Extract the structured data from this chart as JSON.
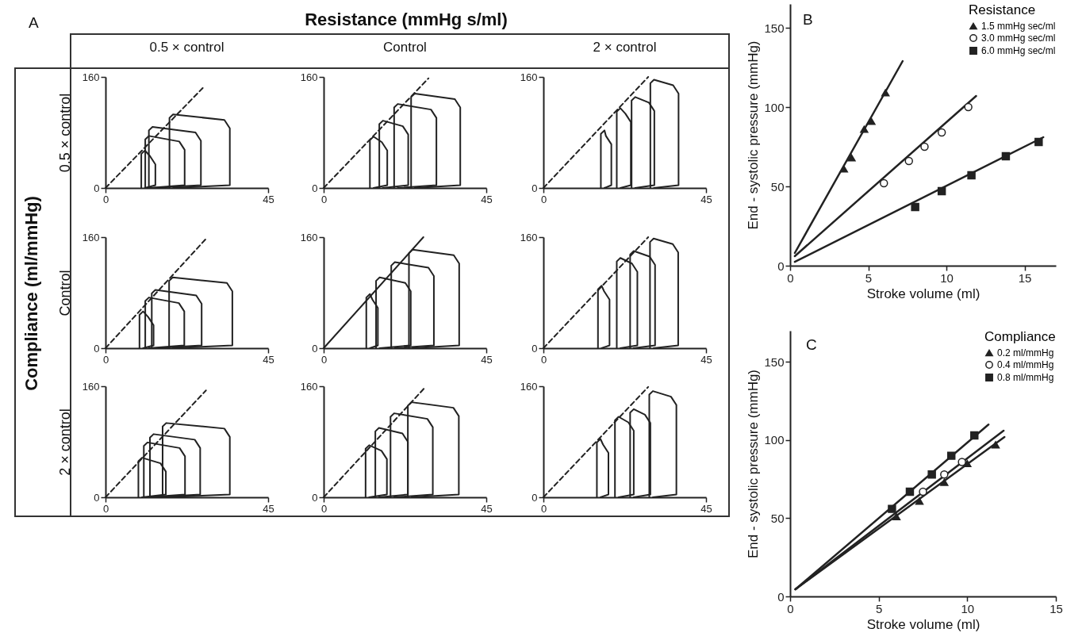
{
  "chart_data": [
    {
      "type": "line",
      "title": "0.5 × control",
      "ylabel": "0.5 × control",
      "annotations": [
        "A",
        "Resistance (mmHg s/ml)",
        "Compliance (ml/mmHg)"
      ],
      "xlim": [
        0,
        45
      ],
      "xticks": [
        0,
        45
      ],
      "ylim": [
        0,
        160
      ],
      "yticks": [
        0,
        160
      ],
      "series": [
        {
          "color": "#222222",
          "x": [
            9.9,
            9.9,
            10.9,
            12.3,
            13.8,
            13.8,
            10.9
          ],
          "values": [
            0,
            49,
            54,
            46,
            34,
            4,
            0
          ]
        },
        {
          "color": "#222222",
          "x": [
            11,
            11,
            12,
            20.4,
            21.9,
            21.9,
            12
          ],
          "values": [
            0,
            70,
            75,
            67,
            55,
            4,
            0
          ]
        },
        {
          "color": "#222222",
          "x": [
            12,
            12,
            13,
            24.9,
            26.4,
            26.4,
            13
          ],
          "values": [
            0,
            83,
            88,
            80,
            68,
            4,
            0
          ]
        },
        {
          "color": "#222222",
          "x": [
            17.7,
            17.7,
            18.7,
            32.9,
            34.4,
            34.4,
            18.7
          ],
          "values": [
            0,
            101,
            106,
            98,
            86,
            4,
            0
          ]
        },
        {
          "color": "#222222",
          "line_style": "dashed",
          "x": [
            0,
            26.9
          ],
          "values": [
            0,
            144
          ]
        }
      ]
    },
    {
      "type": "line",
      "title": "Control",
      "xlim": [
        0,
        45
      ],
      "xticks": [
        0,
        45
      ],
      "ylim": [
        0,
        160
      ],
      "yticks": [
        0,
        160
      ],
      "series": [
        {
          "color": "#222222",
          "x": [
            12.8,
            12.8,
            13.8,
            16.1,
            17.6,
            17.6,
            13.8
          ],
          "values": [
            0,
            69,
            74,
            66,
            54,
            4,
            0
          ]
        },
        {
          "color": "#222222",
          "x": [
            15.4,
            15.4,
            16.4,
            21.9,
            23.4,
            23.4,
            16.4
          ],
          "values": [
            0,
            92,
            97,
            89,
            77,
            4,
            0
          ]
        },
        {
          "color": "#222222",
          "x": [
            19.5,
            19.5,
            20.5,
            29.7,
            31.2,
            31.2,
            20.5
          ],
          "values": [
            0,
            116,
            121,
            113,
            101,
            4,
            0
          ]
        },
        {
          "color": "#222222",
          "x": [
            24.2,
            24.2,
            25.2,
            36.3,
            37.8,
            37.8,
            25.2
          ],
          "values": [
            0,
            131,
            136,
            128,
            116,
            4,
            0
          ]
        },
        {
          "color": "#222222",
          "line_style": "dashed",
          "x": [
            0,
            29
          ],
          "values": [
            0,
            158
          ]
        }
      ]
    },
    {
      "type": "line",
      "title": "2 × control",
      "xlim": [
        0,
        45
      ],
      "xticks": [
        0,
        45
      ],
      "ylim": [
        0,
        160
      ],
      "yticks": [
        0,
        160
      ],
      "series": [
        {
          "color": "#222222",
          "x": [
            15.9,
            15.9,
            16.9,
            17.3,
            18.8,
            18.8,
            16.9
          ],
          "values": [
            0,
            78,
            83,
            75,
            63,
            4,
            0
          ]
        },
        {
          "color": "#222222",
          "x": [
            20.3,
            20.3,
            21.3,
            22.7,
            24.2,
            24.2,
            21.3
          ],
          "values": [
            0,
            110,
            115,
            107,
            95,
            4,
            0
          ]
        },
        {
          "color": "#222222",
          "x": [
            24.4,
            24.4,
            25.4,
            29.2,
            30.7,
            30.7,
            25.4
          ],
          "values": [
            0,
            126,
            131,
            123,
            111,
            4,
            0
          ]
        },
        {
          "color": "#222222",
          "x": [
            29.6,
            29.6,
            30.6,
            35.9,
            37.4,
            37.4,
            30.6
          ],
          "values": [
            0,
            151,
            156,
            148,
            136,
            4,
            0
          ]
        },
        {
          "color": "#222222",
          "line_style": "dashed",
          "x": [
            0,
            29
          ],
          "values": [
            0,
            160
          ]
        }
      ]
    },
    {
      "type": "line",
      "ylabel": "Control",
      "xlim": [
        0,
        45
      ],
      "xticks": [
        0,
        45
      ],
      "ylim": [
        0,
        160
      ],
      "yticks": [
        0,
        160
      ],
      "series": [
        {
          "color": "#222222",
          "x": [
            9.4,
            9.4,
            10.4,
            11.8,
            13.3,
            13.3,
            10.4
          ],
          "values": [
            0,
            48,
            53,
            45,
            33,
            4,
            0
          ]
        },
        {
          "color": "#222222",
          "x": [
            11,
            11,
            12,
            20.3,
            21.8,
            21.8,
            12
          ],
          "values": [
            0,
            68,
            73,
            65,
            53,
            4,
            0
          ]
        },
        {
          "color": "#222222",
          "x": [
            12.8,
            12.8,
            13.8,
            25.1,
            26.6,
            26.6,
            13.8
          ],
          "values": [
            0,
            79,
            84,
            76,
            64,
            4,
            0
          ]
        },
        {
          "color": "#222222",
          "x": [
            17.6,
            17.6,
            18.6,
            33.6,
            35.1,
            35.1,
            18.6
          ],
          "values": [
            0,
            97,
            102,
            94,
            82,
            4,
            0
          ]
        },
        {
          "color": "#222222",
          "line_style": "dashed",
          "x": [
            0,
            27.7
          ],
          "values": [
            0,
            157
          ]
        }
      ]
    },
    {
      "type": "line",
      "xlim": [
        0,
        45
      ],
      "xticks": [
        0,
        45
      ],
      "ylim": [
        0,
        160
      ],
      "yticks": [
        0,
        160
      ],
      "series": [
        {
          "color": "#222222",
          "x": [
            11.8,
            11.8,
            12.8,
            13.5,
            15,
            15,
            12.8
          ],
          "values": [
            0,
            73,
            78,
            70,
            58,
            4,
            0
          ]
        },
        {
          "color": "#222222",
          "x": [
            14.5,
            14.5,
            15.5,
            22.6,
            24.1,
            24.1,
            15.5
          ],
          "values": [
            0,
            97,
            102,
            94,
            82,
            4,
            0
          ]
        },
        {
          "color": "#222222",
          "x": [
            18.7,
            18.7,
            19.7,
            29,
            30.5,
            30.5,
            19.7
          ],
          "values": [
            0,
            119,
            124,
            116,
            104,
            4,
            0
          ]
        },
        {
          "color": "#222222",
          "x": [
            23.6,
            23.6,
            24.6,
            36,
            37.5,
            37.5,
            24.6
          ],
          "values": [
            0,
            137,
            142,
            134,
            122,
            4,
            0
          ]
        },
        {
          "color": "#222222",
          "line_style": "solid",
          "x": [
            0,
            27.6
          ],
          "values": [
            0,
            160
          ]
        }
      ]
    },
    {
      "type": "line",
      "xlim": [
        0,
        45
      ],
      "xticks": [
        0,
        45
      ],
      "ylim": [
        0,
        160
      ],
      "yticks": [
        0,
        160
      ],
      "series": [
        {
          "color": "#222222",
          "x": [
            15.1,
            15.1,
            16.1,
            16.8,
            18.3,
            18.3,
            16.1
          ],
          "values": [
            0,
            85,
            90,
            82,
            70,
            4,
            0
          ]
        },
        {
          "color": "#222222",
          "x": [
            20.3,
            20.3,
            21.3,
            24.5,
            26,
            26,
            21.3
          ],
          "values": [
            0,
            125,
            130,
            122,
            110,
            4,
            0
          ]
        },
        {
          "color": "#222222",
          "x": [
            24,
            24,
            25,
            29.4,
            30.9,
            30.9,
            25
          ],
          "values": [
            0,
            135,
            140,
            132,
            120,
            4,
            0
          ]
        },
        {
          "color": "#222222",
          "x": [
            29.5,
            29.5,
            30.5,
            35.8,
            37.3,
            37.3,
            30.5
          ],
          "values": [
            0,
            153,
            158,
            150,
            138,
            4,
            0
          ]
        },
        {
          "color": "#222222",
          "line_style": "dashed",
          "x": [
            0,
            29
          ],
          "values": [
            0,
            160
          ]
        }
      ]
    },
    {
      "type": "line",
      "ylabel": "2 × control",
      "xlim": [
        0,
        45
      ],
      "xticks": [
        0,
        45
      ],
      "ylim": [
        0,
        160
      ],
      "yticks": [
        0,
        160
      ],
      "series": [
        {
          "color": "#222222",
          "x": [
            9.1,
            9.1,
            10.1,
            15.2,
            16.7,
            16.7,
            10.1
          ],
          "values": [
            0,
            52,
            57,
            49,
            37,
            4,
            0
          ]
        },
        {
          "color": "#222222",
          "x": [
            10.6,
            10.6,
            11.6,
            20.5,
            22,
            22,
            11.6
          ],
          "values": [
            0,
            74,
            79,
            71,
            59,
            4,
            0
          ]
        },
        {
          "color": "#222222",
          "x": [
            12.3,
            12.3,
            13.3,
            24.7,
            26.2,
            26.2,
            13.3
          ],
          "values": [
            0,
            86,
            91,
            83,
            71,
            4,
            0
          ]
        },
        {
          "color": "#222222",
          "x": [
            15.8,
            15.8,
            16.8,
            32.9,
            34.4,
            34.4,
            16.8
          ],
          "values": [
            0,
            102,
            107,
            99,
            87,
            4,
            0
          ]
        },
        {
          "color": "#222222",
          "line_style": "dashed",
          "x": [
            0,
            27.8
          ],
          "values": [
            0,
            154
          ]
        }
      ]
    },
    {
      "type": "line",
      "xlim": [
        0,
        45
      ],
      "xticks": [
        0,
        45
      ],
      "ylim": [
        0,
        160
      ],
      "yticks": [
        0,
        160
      ],
      "series": [
        {
          "color": "#222222",
          "x": [
            11.6,
            11.6,
            12.6,
            16,
            17.5,
            17.5,
            12.6
          ],
          "values": [
            0,
            70,
            75,
            67,
            55,
            4,
            0
          ]
        },
        {
          "color": "#222222",
          "x": [
            14.3,
            14.3,
            15.3,
            21.8,
            23.3,
            23.3,
            15.3
          ],
          "values": [
            0,
            95,
            100,
            92,
            80,
            4,
            0
          ]
        },
        {
          "color": "#222222",
          "x": [
            18.5,
            18.5,
            19.5,
            28.7,
            30.2,
            30.2,
            19.5
          ],
          "values": [
            0,
            116,
            121,
            113,
            101,
            4,
            0
          ]
        },
        {
          "color": "#222222",
          "x": [
            23.3,
            23.3,
            24.3,
            35.9,
            37.4,
            37.4,
            24.3
          ],
          "values": [
            0,
            132,
            137,
            129,
            117,
            4,
            0
          ]
        },
        {
          "color": "#222222",
          "line_style": "dashed",
          "x": [
            0,
            28
          ],
          "values": [
            0,
            158
          ]
        }
      ]
    },
    {
      "type": "line",
      "xlim": [
        0,
        45
      ],
      "xticks": [
        0,
        45
      ],
      "ylim": [
        0,
        160
      ],
      "yticks": [
        0,
        160
      ],
      "series": [
        {
          "color": "#222222",
          "x": [
            14.8,
            14.8,
            15.8,
            16.5,
            18,
            18,
            15.8
          ],
          "values": [
            0,
            79,
            84,
            76,
            64,
            4,
            0
          ]
        },
        {
          "color": "#222222",
          "x": [
            19.8,
            19.8,
            20.8,
            23.5,
            25,
            25,
            20.8
          ],
          "values": [
            0,
            111,
            116,
            108,
            96,
            4,
            0
          ]
        },
        {
          "color": "#222222",
          "x": [
            24,
            24,
            25,
            28.1,
            29.6,
            29.6,
            25
          ],
          "values": [
            0,
            122,
            127,
            119,
            107,
            4,
            0
          ]
        },
        {
          "color": "#222222",
          "x": [
            29.3,
            29.3,
            30.3,
            35.3,
            36.8,
            36.8,
            30.3
          ],
          "values": [
            0,
            148,
            153,
            145,
            133,
            4,
            0
          ]
        },
        {
          "color": "#222222",
          "line_style": "dashed",
          "x": [
            0,
            29
          ],
          "values": [
            0,
            159
          ]
        }
      ]
    },
    {
      "type": "scatter",
      "xlabel": "Stroke volume (ml)",
      "ylabel": "End - systolic pressure (mmHg)",
      "annotations": [
        "B"
      ],
      "legend": "top right",
      "legend_title": "Resistance",
      "xlim": [
        0,
        17
      ],
      "xticks": [
        0,
        5,
        10,
        15
      ],
      "ylim": [
        0,
        165
      ],
      "yticks": [
        0,
        50,
        100,
        150
      ],
      "series": [
        {
          "name": "1.5 mmHg sec/ml",
          "color": "#222222",
          "marker": "triangle",
          "x": [
            3.44,
            3.93,
            4.74,
            5.2,
            6.1
          ],
          "values": [
            61,
            68,
            86,
            91,
            109
          ]
        },
        {
          "name": "3.0 mmHg sec/ml",
          "color": "#222222",
          "marker": "circle",
          "x": [
            6.0,
            7.6,
            8.6,
            9.7,
            11.4
          ],
          "values": [
            52,
            66,
            75,
            84,
            100
          ]
        },
        {
          "name": "6.0 mmHg sec/ml",
          "color": "#222222",
          "marker": "square",
          "x": [
            8.0,
            9.7,
            11.6,
            13.8,
            15.9
          ],
          "values": [
            37,
            47,
            57,
            69,
            78
          ]
        },
        {
          "type": "line",
          "color": "#222222",
          "x": [
            0.3,
            7.2
          ],
          "values": [
            8,
            129
          ]
        },
        {
          "type": "line",
          "color": "#222222",
          "x": [
            0.3,
            11.9
          ],
          "values": [
            6,
            107
          ]
        },
        {
          "type": "line",
          "color": "#222222",
          "x": [
            0.3,
            16.2
          ],
          "values": [
            2.4,
            81
          ]
        }
      ]
    },
    {
      "type": "scatter",
      "xlabel": "Stroke volume (ml)",
      "ylabel": "End - systolic pressure (mmHg)",
      "annotations": [
        "C"
      ],
      "legend": "top right",
      "legend_title": "Compliance",
      "xlim": [
        0,
        15
      ],
      "xticks": [
        0,
        5,
        10,
        15
      ],
      "ylim": [
        0,
        170
      ],
      "yticks": [
        0,
        50,
        100,
        150
      ],
      "series": [
        {
          "name": "0.2 ml/mmHg",
          "color": "#222222",
          "marker": "triangle",
          "x": [
            6.0,
            7.3,
            8.7,
            10.0,
            11.6
          ],
          "values": [
            51,
            61,
            73,
            85,
            97
          ]
        },
        {
          "name": "0.4 ml/mmHg",
          "color": "#222222",
          "marker": "circle",
          "x": [
            7.5,
            8.7,
            9.7
          ],
          "values": [
            67,
            78,
            86
          ]
        },
        {
          "name": "0.8 ml/mmHg",
          "color": "#222222",
          "marker": "square",
          "x": [
            5.75,
            6.76,
            8.0,
            9.1,
            10.4
          ],
          "values": [
            56,
            67,
            78,
            90,
            103
          ]
        },
        {
          "type": "line",
          "color": "#222222",
          "x": [
            0.3,
            12.1
          ],
          "values": [
            4.6,
            102
          ]
        },
        {
          "type": "line",
          "color": "#222222",
          "x": [
            0.3,
            12.05
          ],
          "values": [
            4.6,
            106
          ]
        },
        {
          "type": "line",
          "color": "#222222",
          "x": [
            0.3,
            11.2
          ],
          "values": [
            4.6,
            110
          ]
        }
      ]
    }
  ]
}
